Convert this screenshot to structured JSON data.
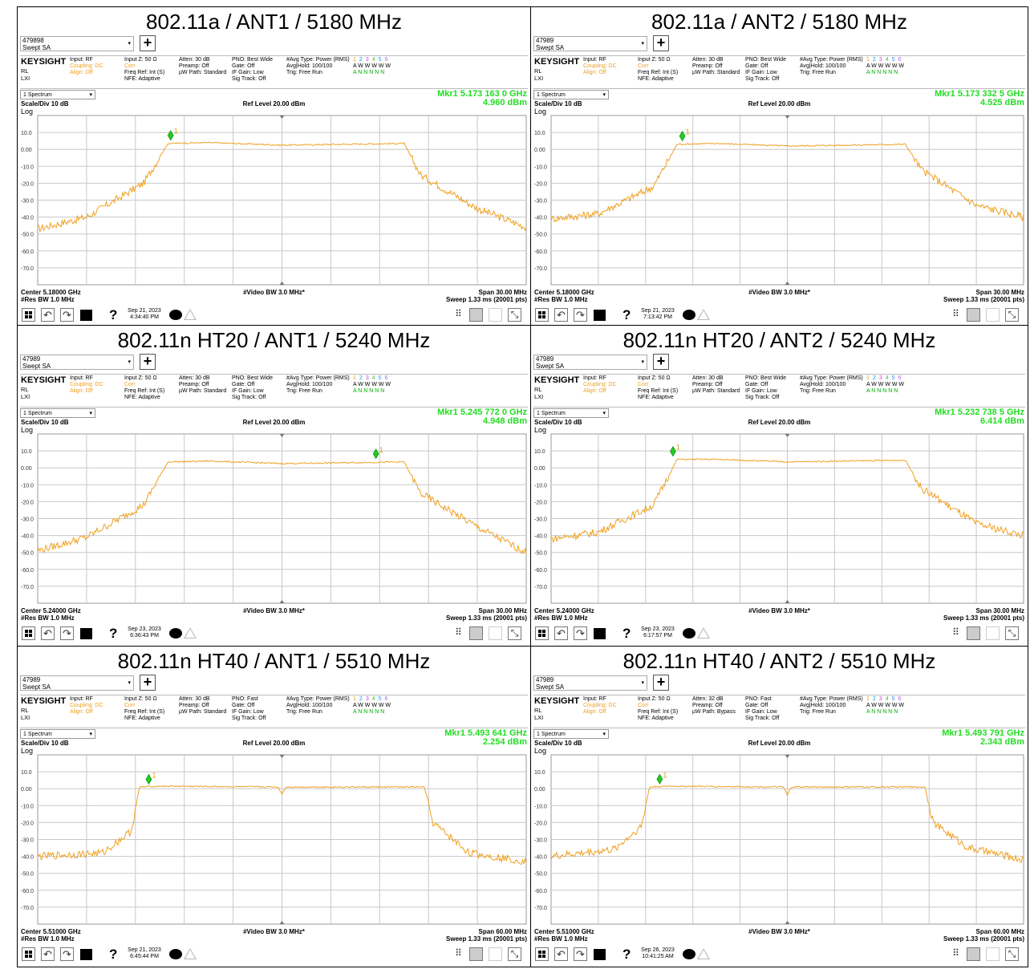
{
  "panels": [
    {
      "title": "802.11a / ANT1 / 5180 MHz",
      "device": "479898",
      "mode": "Swept SA",
      "hdr": {
        "c1": [
          "Input: RF",
          "Coupling: DC",
          "Align: Off"
        ],
        "c2": [
          "Input Z: 50 Ω",
          "Corr",
          "Freq Ref: Int (S)",
          "NFE: Adaptive"
        ],
        "c3": [
          "Atten: 30 dB",
          "Preamp: Off",
          "µW Path: Standard"
        ],
        "c4": [
          "PNO: Best Wide",
          "Gate: Off",
          "IF Gain: Low",
          "Sig Track: Off"
        ],
        "c5": [
          "#Avg Type: Power (RMS)",
          "Avg|Hold: 100/100",
          "Trig: Free Run"
        ]
      },
      "spectrum_label": "1 Spectrum",
      "marker_freq": "Mkr1  5.173 163 0 GHz",
      "marker_level": "4.960 dBm",
      "scale_div": "Scale/Div 10 dB",
      "ref_level": "Ref Level 20.00 dBm",
      "log_label": "Log",
      "center": "Center 5.18000 GHz",
      "res_bw": "#Res BW 1.0 MHz",
      "video_bw": "#Video BW 3.0 MHz*",
      "span": "Span 30.00 MHz",
      "sweep": "Sweep 1.33 ms (20001 pts)",
      "date": "Sep 21, 2023",
      "time": "4:34:40 PM"
    },
    {
      "title": "802.11a / ANT2 / 5180 MHz",
      "device": "47989",
      "mode": "Swept SA",
      "hdr": {
        "c1": [
          "Input: RF",
          "Coupling: DC",
          "Align: Off"
        ],
        "c2": [
          "Input Z: 50 Ω",
          "Corr",
          "Freq Ref: Int (S)",
          "NFE: Adaptive"
        ],
        "c3": [
          "Atten: 30 dB",
          "Preamp: Off",
          "µW Path: Standard"
        ],
        "c4": [
          "PNO: Best Wide",
          "Gate: Off",
          "IF Gain: Low",
          "Sig Track: Off"
        ],
        "c5": [
          "#Avg Type: Power (RMS)",
          "Avg|Hold: 100/100",
          "Trig: Free Run"
        ]
      },
      "spectrum_label": "1 Spectrum",
      "marker_freq": "Mkr1  5.173 332 5 GHz",
      "marker_level": "4.525 dBm",
      "scale_div": "Scale/Div 10 dB",
      "ref_level": "Ref Level 20.00 dBm",
      "log_label": "Log",
      "center": "Center 5.18000 GHz",
      "res_bw": "#Res BW 1.0 MHz",
      "video_bw": "#Video BW 3.0 MHz*",
      "span": "Span 30.00 MHz",
      "sweep": "Sweep 1.33 ms (20001 pts)",
      "date": "Sep 21, 2023",
      "time": "7:13:42 PM"
    },
    {
      "title": "802.11n HT20 / ANT1 / 5240 MHz",
      "device": "47989",
      "mode": "Swept SA",
      "hdr": {
        "c1": [
          "Input: RF",
          "Coupling: DC",
          "Align: Off"
        ],
        "c2": [
          "Input Z: 50 Ω",
          "Corr",
          "Freq Ref: Int (S)",
          "NFE: Adaptive"
        ],
        "c3": [
          "Atten: 30 dB",
          "Preamp: Off",
          "µW Path: Standard"
        ],
        "c4": [
          "PNO: Best Wide",
          "Gate: Off",
          "IF Gain: Low",
          "Sig Track: Off"
        ],
        "c5": [
          "#Avg Type: Power (RMS)",
          "Avg|Hold: 100/100",
          "Trig: Free Run"
        ]
      },
      "spectrum_label": "1 Spectrum",
      "marker_freq": "Mkr1  5.245 772 0 GHz",
      "marker_level": "4.948 dBm",
      "scale_div": "Scale/Div 10 dB",
      "ref_level": "Ref Level 20.00 dBm",
      "log_label": "Log",
      "center": "Center 5.24000 GHz",
      "res_bw": "#Res BW 1.0 MHz",
      "video_bw": "#Video BW 3.0 MHz*",
      "span": "Span 30.00 MHz",
      "sweep": "Sweep 1.33 ms (20001 pts)",
      "date": "Sep 23, 2023",
      "time": "6:36:43 PM"
    },
    {
      "title": "802.11n HT20 / ANT2 / 5240 MHz",
      "device": "47989",
      "mode": "Swept SA",
      "hdr": {
        "c1": [
          "Input: RF",
          "Coupling: DC",
          "Align: Off"
        ],
        "c2": [
          "Input Z: 50 Ω",
          "Corr",
          "Freq Ref: Int (S)",
          "NFE: Adaptive"
        ],
        "c3": [
          "Atten: 30 dB",
          "Preamp: Off",
          "µW Path: Standard"
        ],
        "c4": [
          "PNO: Best Wide",
          "Gate: Off",
          "IF Gain: Low",
          "Sig Track: Off"
        ],
        "c5": [
          "#Avg Type: Power (RMS)",
          "Avg|Hold: 100/100",
          "Trig: Free Run"
        ]
      },
      "spectrum_label": "1 Spectrum",
      "marker_freq": "Mkr1  5.232 738 5 GHz",
      "marker_level": "6.414 dBm",
      "scale_div": "Scale/Div 10 dB",
      "ref_level": "Ref Level 20.00 dBm",
      "log_label": "Log",
      "center": "Center 5.24000 GHz",
      "res_bw": "#Res BW 1.0 MHz",
      "video_bw": "#Video BW 3.0 MHz*",
      "span": "Span 30.00 MHz",
      "sweep": "Sweep 1.33 ms (20001 pts)",
      "date": "Sep 23, 2023",
      "time": "6:17:57 PM"
    },
    {
      "title": "802.11n HT40 / ANT1 / 5510 MHz",
      "device": "47989",
      "mode": "Swept SA",
      "hdr": {
        "c1": [
          "Input: RF",
          "Coupling: DC",
          "Align: Off"
        ],
        "c2": [
          "Input Z: 50 Ω",
          "Corr",
          "Freq Ref: Int (S)",
          "NFE: Adaptive"
        ],
        "c3": [
          "Atten: 30 dB",
          "Preamp: Off",
          "µW Path: Standard"
        ],
        "c4": [
          "PNO: Fast",
          "Gate: Off",
          "IF Gain: Low",
          "Sig Track: Off"
        ],
        "c5": [
          "#Avg Type: Power (RMS)",
          "Avg|Hold: 100/100",
          "Trig: Free Run"
        ]
      },
      "spectrum_label": "1 Spectrum",
      "marker_freq": "Mkr1  5.493 641 GHz",
      "marker_level": "2.254 dBm",
      "scale_div": "Scale/Div 10 dB",
      "ref_level": "Ref Level 20.00 dBm",
      "log_label": "Log",
      "center": "Center 5.51000 GHz",
      "res_bw": "#Res BW 1.0 MHz",
      "video_bw": "#Video BW 3.0 MHz*",
      "span": "Span 60.00 MHz",
      "sweep": "Sweep 1.33 ms (20001 pts)",
      "date": "Sep 21, 2023",
      "time": "6:45:44 PM"
    },
    {
      "title": "802.11n HT40 / ANT2 / 5510 MHz",
      "device": "47989",
      "mode": "Swept SA",
      "hdr": {
        "c1": [
          "Input: RF",
          "Coupling: DC",
          "Align: Off"
        ],
        "c2": [
          "Input Z: 50 Ω",
          "Corr",
          "Freq Ref: Int (S)",
          "NFE: Adaptive"
        ],
        "c3": [
          "Atten: 32 dB",
          "Preamp: Off",
          "µW Path: Bypass"
        ],
        "c4": [
          "PNO: Fast",
          "Gate: Off",
          "IF Gain: Low",
          "Sig Track: Off"
        ],
        "c5": [
          "#Avg Type: Power (RMS)",
          "Avg|Hold: 100/100",
          "Trig: Free Run"
        ]
      },
      "spectrum_label": "1 Spectrum",
      "marker_freq": "Mkr1  5.493 791 GHz",
      "marker_level": "2.343 dBm",
      "scale_div": "Scale/Div 10 dB",
      "ref_level": "Ref Level 20.00 dBm",
      "log_label": "Log",
      "center": "Center 5.51000 GHz",
      "res_bw": "#Res BW 1.0 MHz",
      "video_bw": "#Video BW 3.0 MHz*",
      "span": "Span 60.00 MHz",
      "sweep": "Sweep 1.33 ms (20001 pts)",
      "date": "Sep 26, 2023",
      "time": "10:41:25 AM"
    }
  ],
  "brand": "KEYSIGHT",
  "brand_sub": [
    "RL",
    "LXI"
  ],
  "trace_nums": [
    "1",
    "2",
    "3",
    "4",
    "5",
    "6"
  ],
  "trace_row2": "A W W W W W",
  "trace_row3": "A N N N N N",
  "colors": {
    "trace": "#f0a020",
    "marker": "#22cc22",
    "grid": "#c8c8c8",
    "mkr_text": "#22dd22"
  },
  "chart_data": [
    {
      "type": "line",
      "xlabel": "",
      "ylabel": "",
      "ylim": [
        -80,
        20
      ],
      "y_ticks": [
        "10.0",
        "0.00",
        "-10.0",
        "-20.0",
        "-30.0",
        "-40.0",
        "-50.0",
        "-60.0",
        "-70.0"
      ],
      "x_center_ghz": 5.18,
      "x_span_mhz": 30,
      "series": [
        {
          "x": [
            5.165,
            5.168,
            5.1715,
            5.173,
            5.1755,
            5.18,
            5.1875,
            5.1885,
            5.192,
            5.195
          ],
          "y": [
            -47,
            -40,
            -20,
            3.5,
            4,
            2.5,
            3.5,
            -15,
            -35,
            -46
          ]
        }
      ],
      "marker": {
        "x": 5.173163,
        "y": 4.96
      }
    },
    {
      "type": "line",
      "xlabel": "",
      "ylabel": "",
      "ylim": [
        -80,
        20
      ],
      "y_ticks": [
        "10.0",
        "0.00",
        "-10.0",
        "-20.0",
        "-30.0",
        "-40.0",
        "-50.0",
        "-60.0",
        "-70.0"
      ],
      "x_center_ghz": 5.18,
      "x_span_mhz": 30,
      "series": [
        {
          "x": [
            5.165,
            5.168,
            5.1715,
            5.173,
            5.1755,
            5.18,
            5.1875,
            5.1885,
            5.192,
            5.195
          ],
          "y": [
            -41,
            -38,
            -22,
            3,
            3.5,
            2,
            3,
            -12,
            -33,
            -40
          ]
        }
      ],
      "marker": {
        "x": 5.1733325,
        "y": 4.525
      }
    },
    {
      "type": "line",
      "xlabel": "",
      "ylabel": "",
      "ylim": [
        -80,
        20
      ],
      "y_ticks": [
        "10.0",
        "0.00",
        "-10.0",
        "-20.0",
        "-30.0",
        "-40.0",
        "-50.0",
        "-60.0",
        "-70.0"
      ],
      "x_center_ghz": 5.24,
      "x_span_mhz": 30,
      "series": [
        {
          "x": [
            5.225,
            5.228,
            5.2315,
            5.233,
            5.2355,
            5.24,
            5.2475,
            5.2485,
            5.252,
            5.255
          ],
          "y": [
            -49,
            -41,
            -22,
            3.5,
            4,
            2.5,
            3.5,
            -15,
            -35,
            -50
          ]
        }
      ],
      "marker": {
        "x": 5.245772,
        "y": 4.948
      }
    },
    {
      "type": "line",
      "xlabel": "",
      "ylabel": "",
      "ylim": [
        -80,
        20
      ],
      "y_ticks": [
        "10.0",
        "0.00",
        "-10.0",
        "-20.0",
        "-30.0",
        "-40.0",
        "-50.0",
        "-60.0",
        "-70.0"
      ],
      "x_center_ghz": 5.24,
      "x_span_mhz": 30,
      "series": [
        {
          "x": [
            5.225,
            5.228,
            5.2315,
            5.233,
            5.2355,
            5.24,
            5.2475,
            5.2485,
            5.252,
            5.255
          ],
          "y": [
            -42,
            -38,
            -22,
            5,
            5,
            3.5,
            4.5,
            -12,
            -33,
            -40
          ]
        }
      ],
      "marker": {
        "x": 5.2327385,
        "y": 6.414
      }
    },
    {
      "type": "line",
      "xlabel": "",
      "ylabel": "",
      "ylim": [
        -80,
        20
      ],
      "y_ticks": [
        "10.0",
        "0.00",
        "-10.0",
        "-20.0",
        "-30.0",
        "-40.0",
        "-50.0",
        "-60.0",
        "-70.0"
      ],
      "x_center_ghz": 5.51,
      "x_span_mhz": 60,
      "series": [
        {
          "x": [
            5.48,
            5.488,
            5.4915,
            5.4925,
            5.495,
            5.5095,
            5.51,
            5.5105,
            5.5275,
            5.5285,
            5.533,
            5.54
          ],
          "y": [
            -40,
            -38,
            -25,
            1,
            1.5,
            1,
            -3,
            1,
            1,
            -20,
            -38,
            -43
          ]
        }
      ],
      "marker": {
        "x": 5.493641,
        "y": 2.254
      }
    },
    {
      "type": "line",
      "xlabel": "",
      "ylabel": "",
      "ylim": [
        -80,
        20
      ],
      "y_ticks": [
        "10.0",
        "0.00",
        "-10.0",
        "-20.0",
        "-30.0",
        "-40.0",
        "-50.0",
        "-60.0",
        "-70.0"
      ],
      "x_center_ghz": 5.51,
      "x_span_mhz": 60,
      "series": [
        {
          "x": [
            5.48,
            5.488,
            5.4915,
            5.4925,
            5.495,
            5.5095,
            5.51,
            5.5105,
            5.5275,
            5.5285,
            5.533,
            5.54
          ],
          "y": [
            -40,
            -36,
            -22,
            1,
            1.5,
            1,
            -4,
            1,
            1,
            -20,
            -35,
            -42
          ]
        }
      ],
      "marker": {
        "x": 5.493791,
        "y": 2.343
      }
    }
  ]
}
